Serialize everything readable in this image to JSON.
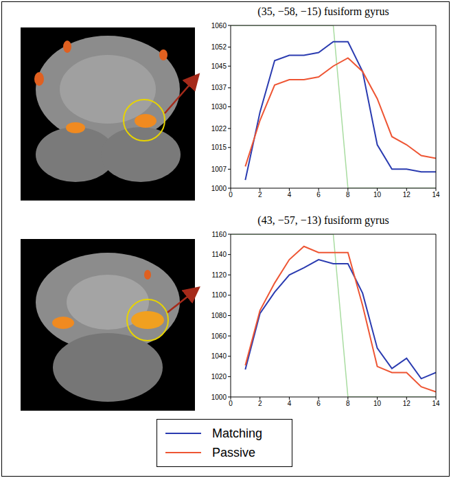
{
  "chart_data": [
    {
      "type": "line",
      "title": "(35, −58, −15) fusiform gyrus",
      "x": [
        0,
        1,
        2,
        3,
        4,
        5,
        6,
        7,
        8,
        9,
        10,
        11,
        12,
        13,
        14
      ],
      "xlim": [
        0,
        14
      ],
      "xticks": [
        0,
        2,
        4,
        6,
        8,
        10,
        12,
        14
      ],
      "ylim": [
        1000,
        1060
      ],
      "yticks": [
        1000,
        1007,
        1015,
        1022,
        1030,
        1037,
        1045,
        1052,
        1060
      ],
      "legend": "bottom",
      "series": [
        {
          "name": "Matching",
          "color": "#2a3bb0",
          "values": [
            null,
            1003,
            1028,
            1047,
            1049,
            1049,
            1050,
            1054,
            1054,
            1043,
            1016,
            1007,
            1007,
            1006,
            1006
          ]
        },
        {
          "name": "Passive",
          "color": "#ee5533",
          "values": [
            null,
            1008,
            1025,
            1038,
            1040,
            1040,
            1041,
            1045,
            1048,
            1043,
            1033,
            1019,
            1016,
            1012,
            1011
          ]
        },
        {
          "color": "#a8dca0",
          "values": [
            1060,
            1060,
            1060,
            1060,
            1060,
            1060,
            1060,
            1060,
            1000,
            1000,
            1000,
            1000,
            1000,
            1000,
            1000
          ]
        }
      ]
    },
    {
      "type": "line",
      "title": "(43, −57, −13) fusiform gyrus",
      "x": [
        0,
        1,
        2,
        3,
        4,
        5,
        6,
        7,
        8,
        9,
        10,
        11,
        12,
        13,
        14
      ],
      "xlim": [
        0,
        14
      ],
      "xticks": [
        0,
        2,
        4,
        6,
        8,
        10,
        12,
        14
      ],
      "ylim": [
        1000,
        1160
      ],
      "yticks": [
        1000,
        1020,
        1040,
        1060,
        1080,
        1100,
        1120,
        1140,
        1160
      ],
      "legend": "bottom",
      "series": [
        {
          "name": "Matching",
          "color": "#2a3bb0",
          "values": [
            null,
            1027,
            1082,
            1103,
            1120,
            1127,
            1135,
            1131,
            1131,
            1102,
            1048,
            1028,
            1038,
            1018,
            1024
          ]
        },
        {
          "name": "Passive",
          "color": "#ee5533",
          "values": [
            null,
            1031,
            1085,
            1112,
            1135,
            1148,
            1142,
            1142,
            1142,
            1090,
            1030,
            1024,
            1024,
            1010,
            1005
          ]
        },
        {
          "color": "#a8dca0",
          "values": [
            1160,
            1160,
            1160,
            1160,
            1160,
            1160,
            1160,
            1160,
            1000,
            1000,
            1000,
            1000,
            1000,
            1000,
            1000
          ]
        }
      ]
    }
  ]
}
